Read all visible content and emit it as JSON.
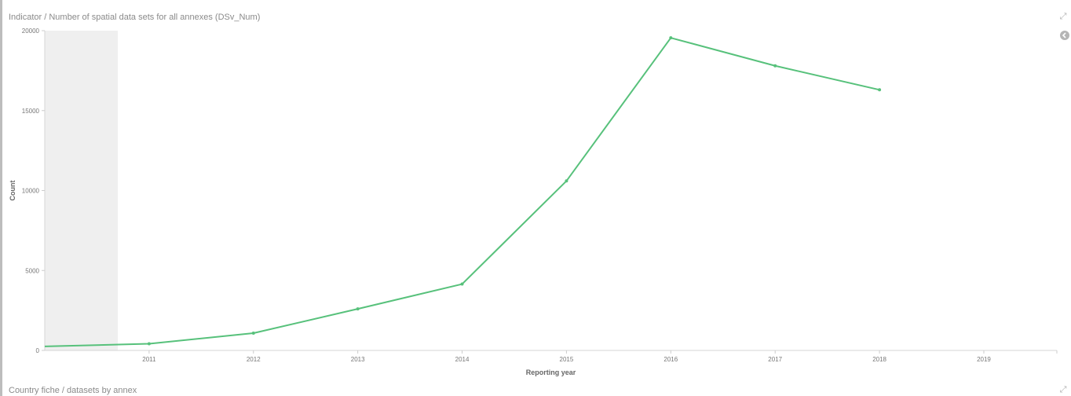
{
  "panels": {
    "main_title": "Indicator / Number of spatial data sets for all annexes (DSv_Num)",
    "second_title": "Country fiche / datasets by annex"
  },
  "icons": {
    "expand": "expand-icon",
    "legend_toggle": "chevron-left-circle-icon"
  },
  "chart_data": {
    "type": "line",
    "title": "Indicator / Number of spatial data sets for all annexes (DSv_Num)",
    "xlabel": "Reporting year",
    "ylabel": "Count",
    "x_ticks": [
      "2011",
      "2012",
      "2013",
      "2014",
      "2015",
      "2016",
      "2017",
      "2018",
      "2019"
    ],
    "y_ticks": [
      "0",
      "5000",
      "10000",
      "15000",
      "20000"
    ],
    "ylim": [
      0,
      20000
    ],
    "xlim": [
      2010.0,
      2019.7
    ],
    "shaded_range": [
      2010.0,
      2010.7
    ],
    "grid": false,
    "series": [
      {
        "color": "#57c17b",
        "x": [
          2010.0,
          2011,
          2012,
          2013,
          2014,
          2015,
          2016,
          2017,
          2018
        ],
        "values": [
          250,
          420,
          1080,
          2600,
          4150,
          10600,
          19550,
          17800,
          16300
        ]
      }
    ]
  }
}
